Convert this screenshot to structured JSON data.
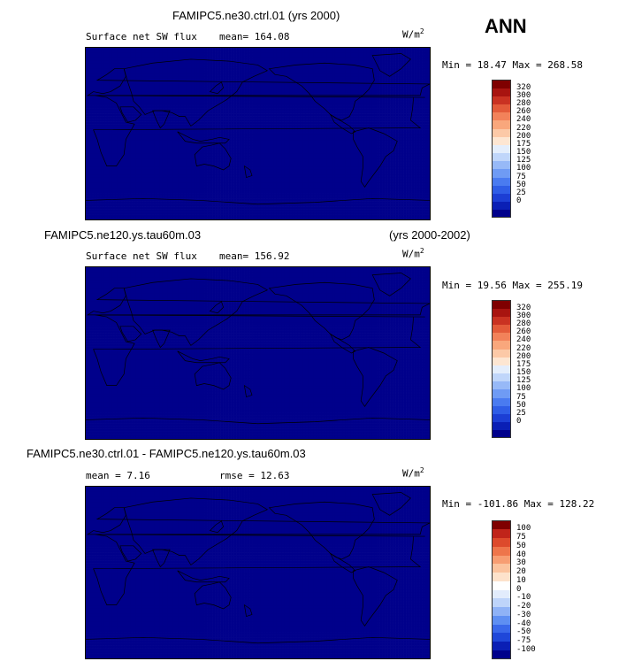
{
  "season": "ANN",
  "colors": {
    "abs_scale": [
      "#00008b",
      "#0a1fb5",
      "#1c3ed4",
      "#2f5de6",
      "#4a7bf0",
      "#6f9bf4",
      "#97b9f7",
      "#c0d6fa",
      "#e4eefc",
      "#fde6d2",
      "#fcc9a7",
      "#f9a77c",
      "#f2825a",
      "#e35b3a",
      "#c93222",
      "#a81410",
      "#7f0000"
    ],
    "diff_scale": [
      "#00008b",
      "#0a1fb5",
      "#1f47d9",
      "#3a68ea",
      "#5f8ff2",
      "#8fb2f6",
      "#bed4fa",
      "#e2ecfc",
      "#ffffff",
      "#fde2cb",
      "#fbc39e",
      "#f79d72",
      "#ee754b",
      "#dd4a2c",
      "#c0241a",
      "#7f0000"
    ]
  },
  "panels": [
    {
      "title": "FAMIPC5.ne30.ctrl.01 (yrs 2000)",
      "variable": "Surface net SW flux",
      "stat_text": "mean= 164.08",
      "units_main": "W/m",
      "units_sup": "2",
      "range_text": "Min =   18.47 Max = 268.58",
      "colorbar_labels": [
        "320",
        "300",
        "280",
        "260",
        "240",
        "220",
        "200",
        "175",
        "150",
        "125",
        "100",
        "75",
        "50",
        "25",
        "0"
      ]
    },
    {
      "title": "FAMIPC5.ne120.ys.tau60m.03",
      "title_right": "(yrs 2000-2002)",
      "variable": "Surface net SW flux",
      "stat_text": "mean= 156.92",
      "units_main": "W/m",
      "units_sup": "2",
      "range_text": "Min =   19.56 Max = 255.19",
      "colorbar_labels": [
        "320",
        "300",
        "280",
        "260",
        "240",
        "220",
        "200",
        "175",
        "150",
        "125",
        "100",
        "75",
        "50",
        "25",
        "0"
      ]
    },
    {
      "title": "FAMIPC5.ne30.ctrl.01 - FAMIPC5.ne120.ys.tau60m.03",
      "mean_text": "mean =   7.16",
      "rmse_text": "rmse =  12.63",
      "units_main": "W/m",
      "units_sup": "2",
      "range_text": "Min = -101.86 Max = 128.22",
      "colorbar_labels": [
        "100",
        "75",
        "50",
        "40",
        "30",
        "20",
        "10",
        "0",
        "-10",
        "-20",
        "-30",
        "-40",
        "-50",
        "-75",
        "-100"
      ]
    }
  ]
}
